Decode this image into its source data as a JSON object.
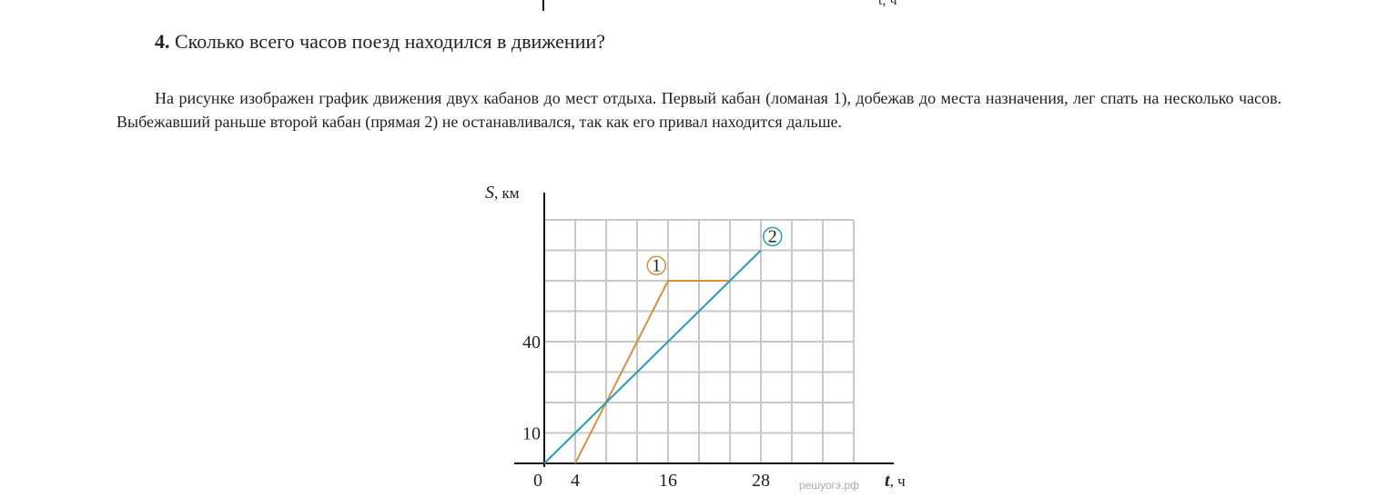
{
  "question": {
    "number": "4.",
    "text": "Сколько всего часов поезд находился в движении?"
  },
  "paragraph": "На рисунке изображен график движения двух кабанов до мест отдыха. Первый кабан (ломаная 1), добежав до места назначения, лег спать на несколько часов. Выбежавший раньше второй кабан (прямая 2) не останавливался, так как его привал находится дальше.",
  "previous_figure_fragment": {
    "xlabel": "t, ч"
  },
  "watermark": "решуогэ.рф",
  "chart_data": {
    "type": "line",
    "ylabel_var": "S",
    "ylabel_unit": ", км",
    "xlabel_var": "t",
    "xlabel_unit": ", ч",
    "xlim": [
      0,
      40
    ],
    "ylim": [
      0,
      80
    ],
    "grid": true,
    "grid_step_x": 4,
    "grid_step_y": 10,
    "x_tick_labels": [
      "0",
      "4",
      "16",
      "28"
    ],
    "x_tick_values": [
      0,
      4,
      16,
      28
    ],
    "y_tick_labels": [
      "10",
      "40"
    ],
    "y_tick_values": [
      10,
      40
    ],
    "series": [
      {
        "name": "1",
        "color": "#d9903a",
        "points": [
          [
            4,
            0
          ],
          [
            16,
            60
          ],
          [
            24,
            60
          ]
        ]
      },
      {
        "name": "2",
        "color": "#2a9bb0",
        "points": [
          [
            0,
            0
          ],
          [
            28,
            70
          ]
        ]
      }
    ]
  }
}
